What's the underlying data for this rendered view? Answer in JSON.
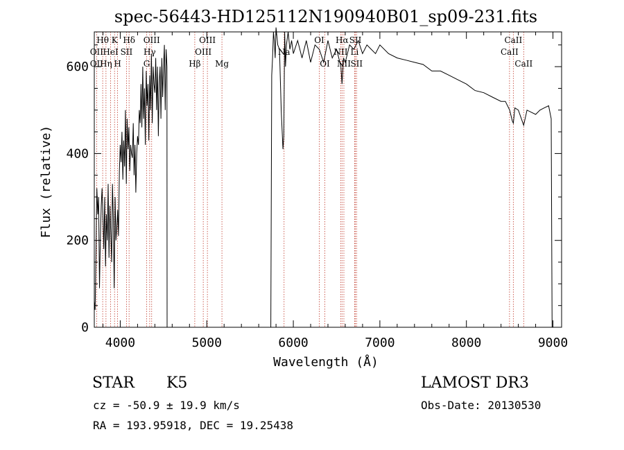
{
  "chart_data": {
    "type": "line",
    "title": "spec-56443-HD125112N190940B01_sp09-231.fits",
    "xlabel": "Wavelength (Å)",
    "ylabel": "Flux (relative)",
    "xlim": [
      3700,
      9100
    ],
    "ylim": [
      0,
      680
    ],
    "xticks": [
      4000,
      5000,
      6000,
      7000,
      8000,
      9000
    ],
    "yticks": [
      0,
      200,
      400,
      600
    ],
    "series": [
      {
        "name": "flux",
        "x": [
          3700,
          3710,
          3720,
          3730,
          3740,
          3750,
          3760,
          3770,
          3780,
          3790,
          3800,
          3810,
          3820,
          3830,
          3840,
          3850,
          3860,
          3870,
          3880,
          3890,
          3900,
          3910,
          3920,
          3930,
          3940,
          3950,
          3960,
          3970,
          3980,
          3990,
          4000,
          4010,
          4020,
          4030,
          4040,
          4050,
          4060,
          4070,
          4080,
          4090,
          4100,
          4110,
          4120,
          4130,
          4140,
          4150,
          4160,
          4170,
          4180,
          4190,
          4200,
          4210,
          4220,
          4230,
          4240,
          4250,
          4260,
          4270,
          4280,
          4290,
          4300,
          4310,
          4320,
          4330,
          4340,
          4350,
          4360,
          4370,
          4380,
          4390,
          4400,
          4410,
          4420,
          4430,
          4440,
          4450,
          4460,
          4470,
          4480,
          4490,
          4500,
          4510,
          4520,
          4530,
          4540,
          4541,
          5740,
          5750,
          5760,
          5770,
          5780,
          5790,
          5800,
          5820,
          5840,
          5860,
          5880,
          5890,
          5900,
          5910,
          5920,
          5940,
          5960,
          5980,
          6000,
          6050,
          6100,
          6150,
          6200,
          6250,
          6300,
          6350,
          6400,
          6450,
          6500,
          6550,
          6563,
          6580,
          6600,
          6650,
          6700,
          6750,
          6800,
          6850,
          6900,
          6950,
          7000,
          7100,
          7200,
          7300,
          7400,
          7500,
          7600,
          7700,
          7800,
          7900,
          8000,
          8100,
          8200,
          8300,
          8400,
          8450,
          8500,
          8530,
          8542,
          8560,
          8600,
          8662,
          8700,
          8750,
          8800,
          8850,
          8900,
          8950,
          8980,
          8990,
          9000
        ],
        "values": [
          60,
          40,
          180,
          320,
          260,
          300,
          90,
          200,
          280,
          320,
          250,
          180,
          300,
          140,
          260,
          200,
          330,
          160,
          280,
          220,
          150,
          330,
          250,
          90,
          300,
          200,
          230,
          270,
          210,
          360,
          420,
          380,
          450,
          340,
          430,
          370,
          500,
          330,
          480,
          410,
          460,
          360,
          420,
          400,
          390,
          470,
          350,
          420,
          310,
          400,
          440,
          420,
          500,
          470,
          560,
          460,
          600,
          480,
          550,
          420,
          590,
          510,
          560,
          430,
          580,
          500,
          630,
          470,
          600,
          560,
          540,
          620,
          500,
          600,
          440,
          560,
          600,
          480,
          620,
          530,
          600,
          650,
          500,
          640,
          600,
          0,
          0,
          580,
          620,
          680,
          660,
          620,
          690,
          650,
          640,
          500,
          410,
          440,
          680,
          600,
          650,
          680,
          640,
          660,
          630,
          660,
          620,
          660,
          610,
          650,
          640,
          610,
          660,
          620,
          640,
          600,
          560,
          620,
          610,
          650,
          640,
          660,
          630,
          650,
          640,
          630,
          650,
          630,
          620,
          615,
          610,
          605,
          590,
          590,
          580,
          570,
          560,
          545,
          540,
          530,
          520,
          520,
          500,
          475,
          470,
          505,
          500,
          465,
          500,
          495,
          490,
          500,
          505,
          510,
          480,
          0,
          0
        ]
      }
    ],
    "lines": [
      {
        "label": "Hθ",
        "x": 3797,
        "row": 1
      },
      {
        "label": "OII",
        "x": 3727,
        "row": 2
      },
      {
        "label": "OII",
        "x": 3727,
        "row": 3
      },
      {
        "label": "Hη",
        "x": 3835,
        "row": 3
      },
      {
        "label": "K",
        "x": 3934,
        "row": 1
      },
      {
        "label": "HeI",
        "x": 3889,
        "row": 2
      },
      {
        "label": "H",
        "x": 3969,
        "row": 3
      },
      {
        "label": "Hδ",
        "x": 4102,
        "row": 1
      },
      {
        "label": "SII",
        "x": 4072,
        "row": 2
      },
      {
        "label": "OIII",
        "x": 4363,
        "row": 1
      },
      {
        "label": "Hγ",
        "x": 4340,
        "row": 2
      },
      {
        "label": "G",
        "x": 4305,
        "row": 3
      },
      {
        "label": "OIII",
        "x": 5007,
        "row": 1
      },
      {
        "label": "OIII",
        "x": 4959,
        "row": 2
      },
      {
        "label": "Hβ",
        "x": 4861,
        "row": 3
      },
      {
        "label": "Mg",
        "x": 5175,
        "row": 3
      },
      {
        "label": "Na",
        "x": 5893,
        "row": 2
      },
      {
        "label": "OI",
        "x": 6300,
        "row": 1
      },
      {
        "label": "OI",
        "x": 6364,
        "row": 3
      },
      {
        "label": "Hα",
        "x": 6563,
        "row": 1
      },
      {
        "label": "NII",
        "x": 6548,
        "row": 2
      },
      {
        "label": "NII",
        "x": 6584,
        "row": 3
      },
      {
        "label": "SII",
        "x": 6717,
        "row": 1
      },
      {
        "label": "Li",
        "x": 6708,
        "row": 2
      },
      {
        "label": "SII",
        "x": 6731,
        "row": 3
      },
      {
        "label": "CaII",
        "x": 8542,
        "row": 1
      },
      {
        "label": "CaII",
        "x": 8498,
        "row": 2
      },
      {
        "label": "CaII",
        "x": 8662,
        "row": 3
      }
    ]
  },
  "info": {
    "class_label": "STAR",
    "subclass": "K5",
    "survey": "LAMOST DR3",
    "cz": "cz = -50.9 ± 19.9 km/s",
    "obs_date": "Obs-Date: 20130530",
    "coords": "RA = 193.95918, DEC =  19.25438"
  },
  "colors": {
    "line": "#000000",
    "marker": "#c0392b"
  }
}
